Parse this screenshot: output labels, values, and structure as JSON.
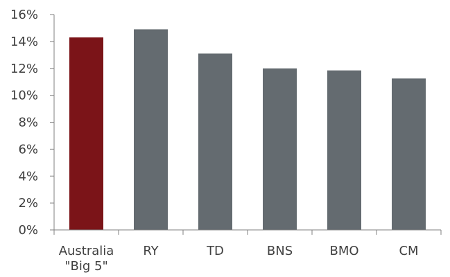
{
  "chart_data": {
    "type": "bar",
    "categories": [
      [
        "Australia",
        "\"Big 5\""
      ],
      [
        "RY"
      ],
      [
        "TD"
      ],
      [
        "BNS"
      ],
      [
        "BMO"
      ],
      [
        "CM"
      ]
    ],
    "values": [
      14.3,
      14.9,
      13.1,
      12.0,
      11.85,
      11.25
    ],
    "bar_colors": [
      "#7b1418",
      "#646b70",
      "#646b70",
      "#646b70",
      "#646b70",
      "#646b70"
    ],
    "ylim": [
      0,
      16
    ],
    "yticks": [
      0,
      2,
      4,
      6,
      8,
      10,
      12,
      14,
      16
    ],
    "ytick_labels": [
      "0%",
      "2%",
      "4%",
      "6%",
      "8%",
      "10%",
      "12%",
      "14%",
      "16%"
    ],
    "title": "",
    "xlabel": "",
    "ylabel": "",
    "grid": false,
    "legend": "none"
  }
}
